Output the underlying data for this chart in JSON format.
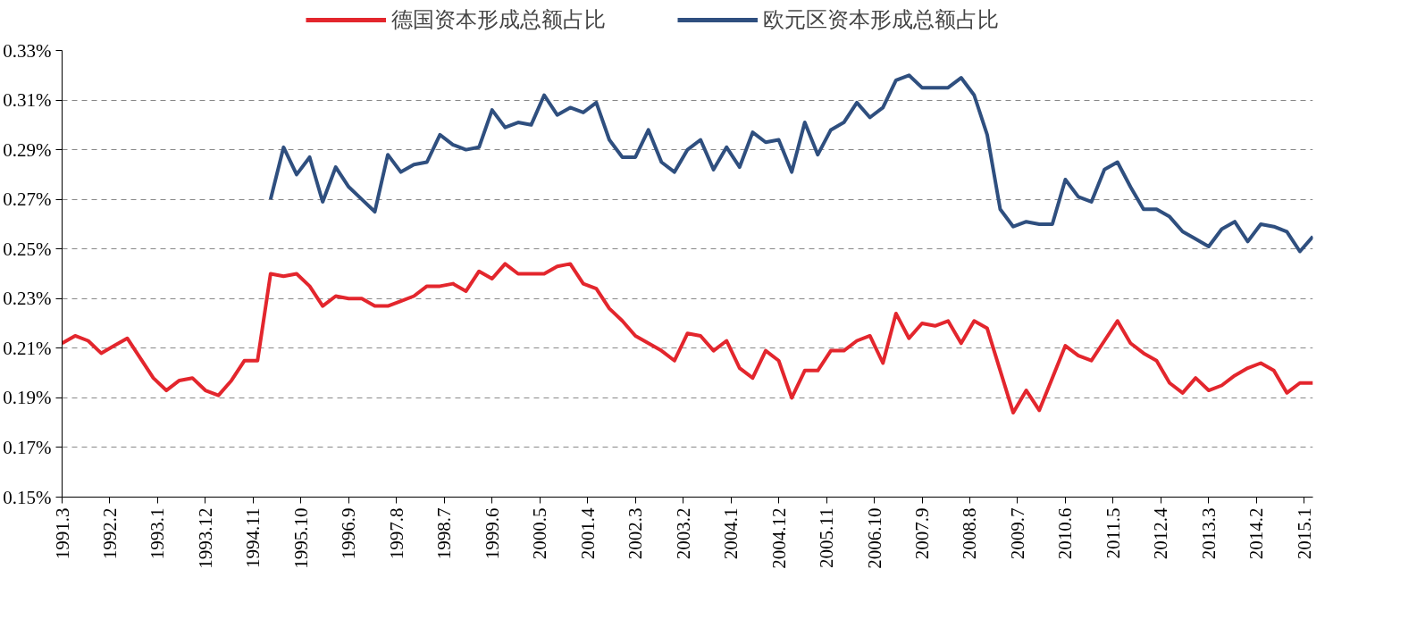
{
  "chart_data": {
    "type": "line",
    "x": [
      "1991-03",
      "1991-06",
      "1991-09",
      "1991-12",
      "1992-03",
      "1992-06",
      "1992-09",
      "1992-12",
      "1993-03",
      "1993-06",
      "1993-09",
      "1993-12",
      "1994-03",
      "1994-06",
      "1994-09",
      "1994-12",
      "1995-03",
      "1995-06",
      "1995-09",
      "1995-12",
      "1996-03",
      "1996-06",
      "1996-09",
      "1996-12",
      "1997-03",
      "1997-06",
      "1997-09",
      "1997-12",
      "1998-03",
      "1998-06",
      "1998-09",
      "1998-12",
      "1999-03",
      "1999-06",
      "1999-09",
      "1999-12",
      "2000-03",
      "2000-06",
      "2000-09",
      "2000-12",
      "2001-03",
      "2001-06",
      "2001-09",
      "2001-12",
      "2002-03",
      "2002-06",
      "2002-09",
      "2002-12",
      "2003-03",
      "2003-06",
      "2003-09",
      "2003-12",
      "2004-03",
      "2004-06",
      "2004-09",
      "2004-12",
      "2005-03",
      "2005-06",
      "2005-09",
      "2005-12",
      "2006-03",
      "2006-06",
      "2006-09",
      "2006-12",
      "2007-03",
      "2007-06",
      "2007-09",
      "2007-12",
      "2008-03",
      "2008-06",
      "2008-09",
      "2008-12",
      "2009-03",
      "2009-06",
      "2009-09",
      "2009-12",
      "2010-03",
      "2010-06",
      "2010-09",
      "2010-12",
      "2011-03",
      "2011-06",
      "2011-09",
      "2011-12",
      "2012-03",
      "2012-06",
      "2012-09",
      "2012-12",
      "2013-03",
      "2013-06",
      "2013-09",
      "2013-12",
      "2014-03",
      "2014-06",
      "2014-09",
      "2014-12",
      "2015-03"
    ],
    "series": [
      {
        "name": "德国资本形成总额占比",
        "color": "#e3262d",
        "values": [
          0.212,
          0.215,
          0.213,
          0.208,
          0.211,
          0.214,
          0.206,
          0.198,
          0.193,
          0.197,
          0.198,
          0.193,
          0.191,
          0.197,
          0.205,
          0.205,
          0.24,
          0.239,
          0.24,
          0.235,
          0.227,
          0.231,
          0.23,
          0.23,
          0.227,
          0.227,
          0.229,
          0.231,
          0.235,
          0.235,
          0.236,
          0.233,
          0.241,
          0.238,
          0.244,
          0.24,
          0.24,
          0.24,
          0.243,
          0.244,
          0.236,
          0.234,
          0.226,
          0.221,
          0.215,
          0.212,
          0.209,
          0.205,
          0.216,
          0.215,
          0.209,
          0.213,
          0.202,
          0.198,
          0.209,
          0.205,
          0.19,
          0.201,
          0.201,
          0.209,
          0.209,
          0.213,
          0.215,
          0.204,
          0.224,
          0.214,
          0.22,
          0.219,
          0.221,
          0.212,
          0.221,
          0.218,
          0.201,
          0.184,
          0.193,
          0.185,
          0.198,
          0.211,
          0.207,
          0.205,
          0.213,
          0.221,
          0.212,
          0.208,
          0.205,
          0.196,
          0.192,
          0.198,
          0.193,
          0.195,
          0.199,
          0.202,
          0.204,
          0.201,
          0.192,
          0.196,
          0.196
        ]
      },
      {
        "name": "欧元区资本形成总额占比",
        "color": "#2f4f7f",
        "values": [
          null,
          null,
          null,
          null,
          null,
          null,
          null,
          null,
          null,
          null,
          null,
          null,
          null,
          null,
          null,
          null,
          0.27,
          0.291,
          0.28,
          0.287,
          0.269,
          0.283,
          0.275,
          0.27,
          0.265,
          0.288,
          0.281,
          0.284,
          0.285,
          0.296,
          0.292,
          0.29,
          0.291,
          0.306,
          0.299,
          0.301,
          0.3,
          0.312,
          0.304,
          0.307,
          0.305,
          0.309,
          0.294,
          0.287,
          0.287,
          0.298,
          0.285,
          0.281,
          0.29,
          0.294,
          0.282,
          0.291,
          0.283,
          0.297,
          0.293,
          0.294,
          0.281,
          0.301,
          0.288,
          0.298,
          0.301,
          0.309,
          0.303,
          0.307,
          0.318,
          0.32,
          0.315,
          0.315,
          0.315,
          0.319,
          0.312,
          0.296,
          0.266,
          0.259,
          0.261,
          0.26,
          0.26,
          0.278,
          0.271,
          0.269,
          0.282,
          0.285,
          0.275,
          0.266,
          0.266,
          0.263,
          0.257,
          0.254,
          0.251,
          0.258,
          0.261,
          0.253,
          0.26,
          0.259,
          0.257,
          0.249,
          0.255
        ]
      }
    ],
    "xlim": [
      "1991-03",
      "2015-03"
    ],
    "xticks": [
      {
        "value": "1991-03",
        "label": "1991.3"
      },
      {
        "value": "1992-02",
        "label": "1992.2"
      },
      {
        "value": "1993-01",
        "label": "1993.1"
      },
      {
        "value": "1993-12",
        "label": "1993.12"
      },
      {
        "value": "1994-11",
        "label": "1994.11"
      },
      {
        "value": "1995-10",
        "label": "1995.10"
      },
      {
        "value": "1996-09",
        "label": "1996.9"
      },
      {
        "value": "1997-08",
        "label": "1997.8"
      },
      {
        "value": "1998-07",
        "label": "1998.7"
      },
      {
        "value": "1999-06",
        "label": "1999.6"
      },
      {
        "value": "2000-05",
        "label": "2000.5"
      },
      {
        "value": "2001-04",
        "label": "2001.4"
      },
      {
        "value": "2002-03",
        "label": "2002.3"
      },
      {
        "value": "2003-02",
        "label": "2003.2"
      },
      {
        "value": "2004-01",
        "label": "2004.1"
      },
      {
        "value": "2004-12",
        "label": "2004.12"
      },
      {
        "value": "2005-11",
        "label": "2005.11"
      },
      {
        "value": "2006-10",
        "label": "2006.10"
      },
      {
        "value": "2007-09",
        "label": "2007.9"
      },
      {
        "value": "2008-08",
        "label": "2008.8"
      },
      {
        "value": "2009-07",
        "label": "2009.7"
      },
      {
        "value": "2010-06",
        "label": "2010.6"
      },
      {
        "value": "2011-05",
        "label": "2011.5"
      },
      {
        "value": "2012-04",
        "label": "2012.4"
      },
      {
        "value": "2013-03",
        "label": "2013.3"
      },
      {
        "value": "2014-02",
        "label": "2014.2"
      },
      {
        "value": "2015-01",
        "label": "2015.1"
      }
    ],
    "ylim": [
      0.15,
      0.33
    ],
    "yticks": [
      {
        "value": 0.15,
        "label": "0.15%"
      },
      {
        "value": 0.17,
        "label": "0.17%"
      },
      {
        "value": 0.19,
        "label": "0.19%"
      },
      {
        "value": 0.21,
        "label": "0.21%"
      },
      {
        "value": 0.23,
        "label": "0.23%"
      },
      {
        "value": 0.25,
        "label": "0.25%"
      },
      {
        "value": 0.27,
        "label": "0.27%"
      },
      {
        "value": 0.29,
        "label": "0.29%"
      },
      {
        "value": 0.31,
        "label": "0.31%"
      },
      {
        "value": 0.33,
        "label": "0.33%"
      }
    ],
    "grid": "y",
    "legend": "top"
  }
}
